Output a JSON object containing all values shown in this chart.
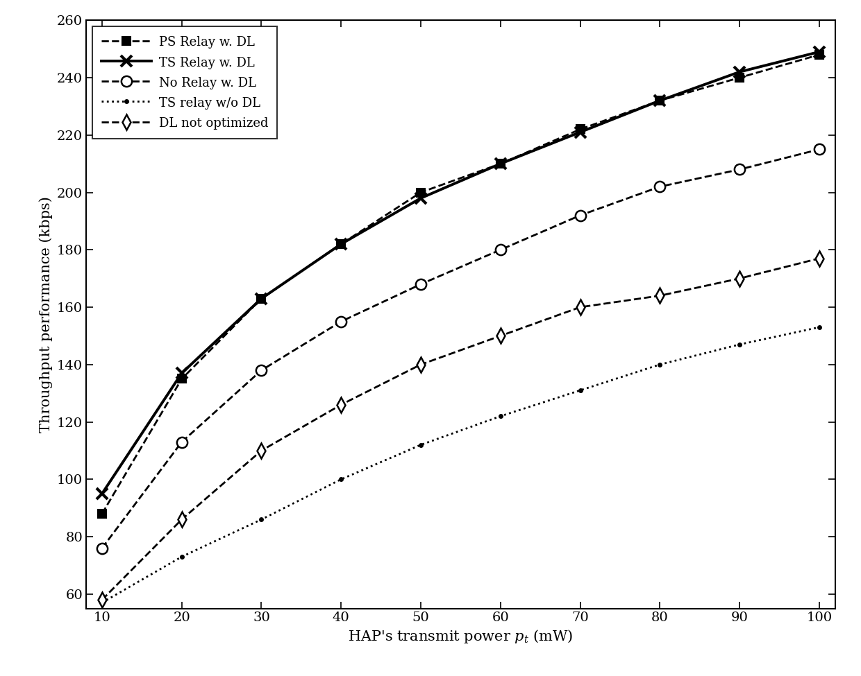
{
  "x": [
    10,
    20,
    30,
    40,
    50,
    60,
    70,
    80,
    90,
    100
  ],
  "ps_relay_dl": [
    88,
    135,
    163,
    182,
    200,
    210,
    222,
    232,
    240,
    248
  ],
  "ts_relay_dl": [
    95,
    137,
    163,
    182,
    198,
    210,
    221,
    232,
    242,
    249
  ],
  "no_relay_dl": [
    76,
    113,
    138,
    155,
    168,
    180,
    192,
    202,
    208,
    215
  ],
  "ts_relay_wo_dl": [
    57,
    73,
    86,
    100,
    112,
    122,
    131,
    140,
    147,
    153
  ],
  "dl_not_optimized": [
    58,
    86,
    110,
    126,
    140,
    150,
    160,
    164,
    170,
    177
  ],
  "xlabel": "HAP's transmit power $p_t$ (mW)",
  "ylabel": "Throughput performance (kbps)",
  "xlim": [
    10,
    100
  ],
  "ylim": [
    55,
    260
  ],
  "xticks": [
    10,
    20,
    30,
    40,
    50,
    60,
    70,
    80,
    90,
    100
  ],
  "yticks": [
    60,
    80,
    100,
    120,
    140,
    160,
    180,
    200,
    220,
    240,
    260
  ],
  "legend_labels": [
    "PS Relay w. DL",
    "TS Relay w. DL",
    "No Relay w. DL",
    "TS relay w/o DL",
    "DL not optimized"
  ],
  "background_color": "#ffffff",
  "line_color": "#000000",
  "figsize": [
    12.4,
    9.75
  ],
  "dpi": 100
}
